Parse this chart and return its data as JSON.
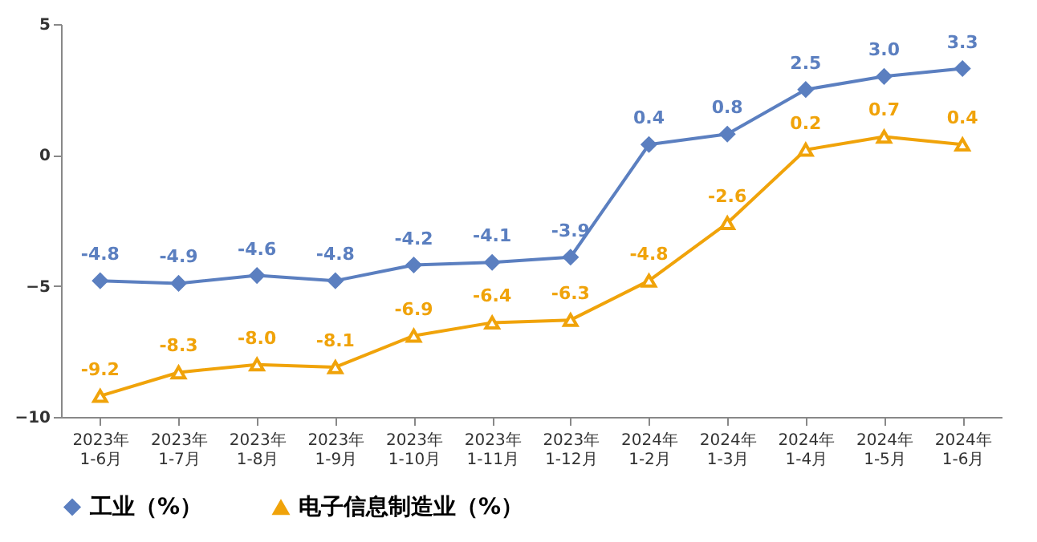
{
  "chart_data": {
    "type": "line",
    "categories": [
      "2023年\n1-6月",
      "2023年\n1-7月",
      "2023年\n1-8月",
      "2023年\n1-9月",
      "2023年\n1-10月",
      "2023年\n1-11月",
      "2023年\n1-12月",
      "2024年\n1-2月",
      "2024年\n1-3月",
      "2024年\n1-4月",
      "2024年\n1-5月",
      "2024年\n1-6月"
    ],
    "series": [
      {
        "name": "工业（%）",
        "color": "#5b7fc0",
        "marker": "diamond",
        "values": [
          -4.8,
          -4.9,
          -4.6,
          -4.8,
          -4.2,
          -4.1,
          -3.9,
          0.4,
          0.8,
          2.5,
          3.0,
          3.3
        ],
        "value_labels": [
          "-4.8",
          "-4.9",
          "-4.6",
          "-4.8",
          "-4.2",
          "-4.1",
          "-3.9",
          "0.4",
          "0.8",
          "2.5",
          "3.0",
          "3.3"
        ]
      },
      {
        "name": "电子信息制造业（%）",
        "color": "#f0a30a",
        "marker": "triangle",
        "values": [
          -9.2,
          -8.3,
          -8.0,
          -8.1,
          -6.9,
          -6.4,
          -6.3,
          -4.8,
          -2.6,
          0.2,
          0.7,
          0.4
        ],
        "value_labels": [
          "-9.2",
          "-8.3",
          "-8.0",
          "-8.1",
          "-6.9",
          "-6.4",
          "-6.3",
          "-4.8",
          "-2.6",
          "0.2",
          "0.7",
          "0.4"
        ]
      }
    ],
    "ylim": [
      -10,
      5
    ],
    "yticks": [
      -10,
      -5,
      0,
      5
    ],
    "grid": false,
    "legend": "bottom"
  }
}
